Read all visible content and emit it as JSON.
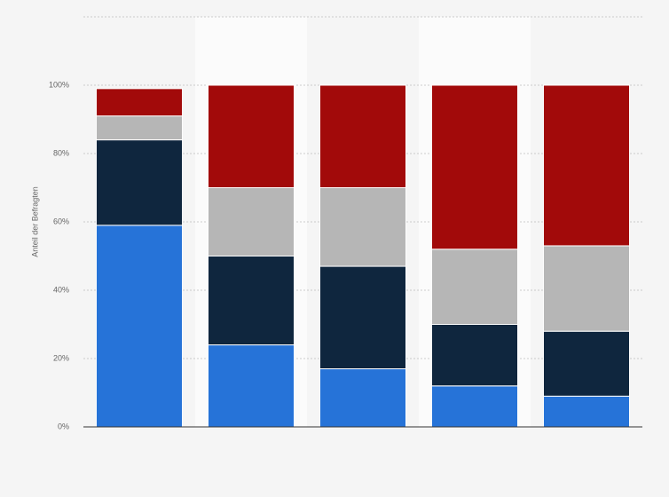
{
  "chart_data": {
    "type": "bar",
    "stacked": true,
    "y_label": "Anteil der Befragten",
    "categories": [
      null,
      null,
      null,
      null,
      null
    ],
    "series": [
      {
        "color": "#2673d8",
        "values": [
          59,
          24,
          17,
          12,
          9
        ]
      },
      {
        "color": "#0f263e",
        "values": [
          25,
          26,
          30,
          18,
          19
        ]
      },
      {
        "color": "#b6b6b6",
        "values": [
          7,
          20,
          23,
          22,
          25
        ]
      },
      {
        "color": "#a20a0a",
        "values": [
          8,
          30,
          30,
          48,
          47
        ]
      }
    ],
    "ylim": [
      0,
      120
    ],
    "yticks": [
      {
        "value": 0,
        "label": "0%"
      },
      {
        "value": 20,
        "label": "20%"
      },
      {
        "value": 40,
        "label": "40%"
      },
      {
        "value": 60,
        "label": "60%"
      },
      {
        "value": 80,
        "label": "80%"
      },
      {
        "value": 100,
        "label": "100%"
      }
    ],
    "grid": true
  }
}
